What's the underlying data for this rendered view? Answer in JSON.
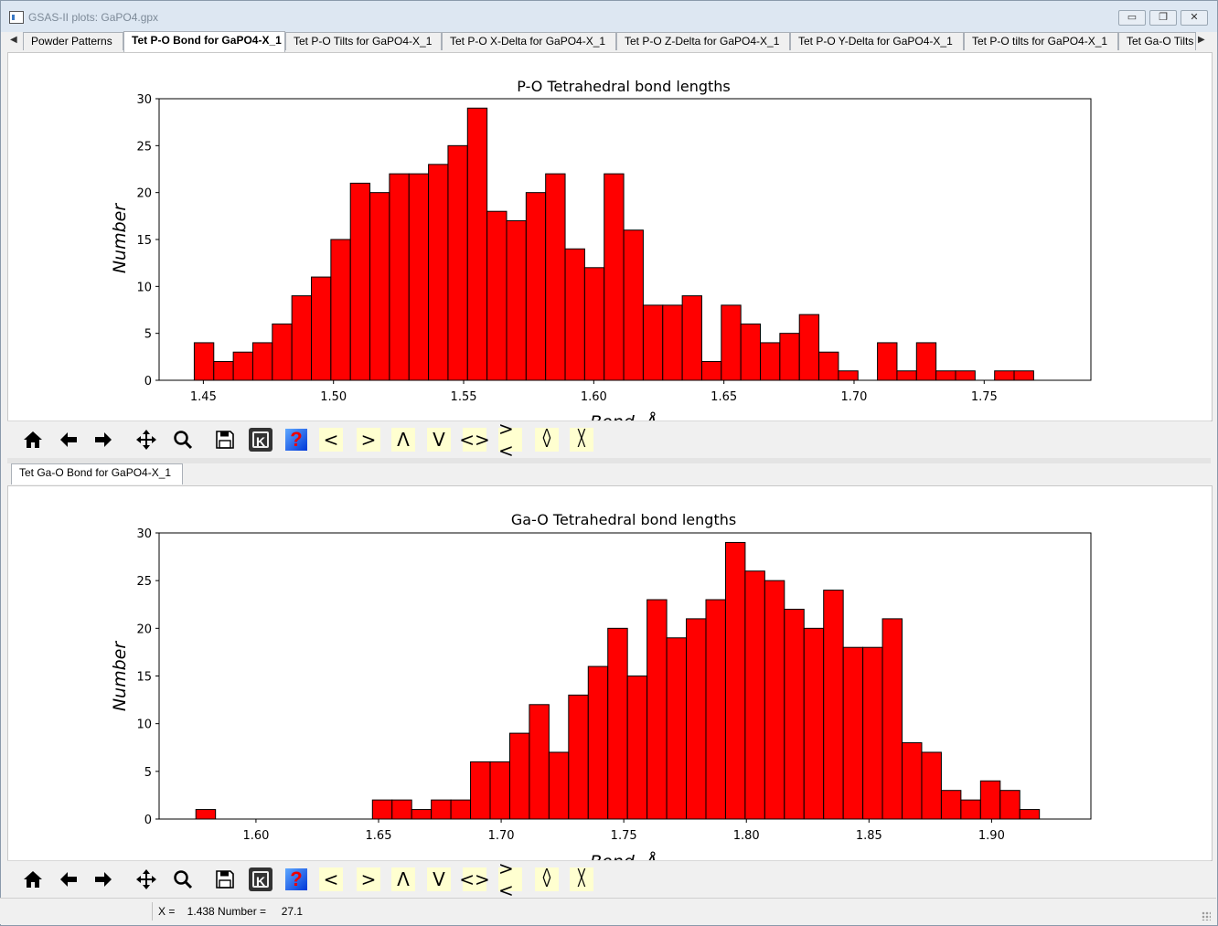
{
  "window": {
    "title": "GSAS-II plots: GaPO4.gpx",
    "minimize_glyph": "▭",
    "restore_glyph": "❐",
    "close_glyph": "✕"
  },
  "tabs": [
    {
      "label": "Powder Patterns",
      "active": false
    },
    {
      "label": "Tet P-O Bond for GaPO4-X_1",
      "active": true
    },
    {
      "label": "Tet P-O Tilts for GaPO4-X_1",
      "active": false
    },
    {
      "label": "Tet P-O X-Delta for GaPO4-X_1",
      "active": false
    },
    {
      "label": "Tet P-O Z-Delta for GaPO4-X_1",
      "active": false
    },
    {
      "label": "Tet P-O Y-Delta for GaPO4-X_1",
      "active": false
    },
    {
      "label": "Tet P-O tilts for GaPO4-X_1",
      "active": false
    },
    {
      "label": "Tet Ga-O Tilts",
      "active": false
    }
  ],
  "lower_tabs": [
    {
      "label": "Tet Ga-O Bond for GaPO4-X_1",
      "active": true
    }
  ],
  "toolbar_icons": [
    "home-icon",
    "back-arrow-icon",
    "forward-arrow-icon",
    "pan-icon",
    "zoom-icon",
    "save-icon",
    "k-key-icon",
    "help-icon",
    "shift-left-icon",
    "shift-right-icon",
    "shift-up-icon",
    "shift-down-icon",
    "expand-horizontal-icon",
    "shrink-horizontal-icon",
    "expand-vertical-icon",
    "shrink-vertical-icon"
  ],
  "toolbar_glyphs": {
    "lt": "<",
    "gt": ">",
    "up": "Λ",
    "down": "V",
    "exp_h": "<>",
    "shr_h": "><",
    "k": "K",
    "q": "?"
  },
  "status": {
    "text": "X =    1.438 Number =     27.1"
  },
  "colors": {
    "bar_fill": "#ff0000",
    "bar_edge": "#000000"
  },
  "chart_data": [
    {
      "type": "bar",
      "title": "P-O Tetrahedral bond lengths",
      "xlabel": "Bond, Å",
      "ylabel": "Number",
      "xlim": [
        1.433,
        1.791
      ],
      "ylim": [
        0,
        30
      ],
      "xticks": [
        "1.45",
        "1.50",
        "1.55",
        "1.60",
        "1.65",
        "1.70",
        "1.75"
      ],
      "yticks": [
        "0",
        "5",
        "10",
        "15",
        "20",
        "25",
        "30"
      ],
      "bin_start": 1.4465,
      "bin_width": 0.0075,
      "values": [
        4,
        2,
        3,
        4,
        6,
        9,
        11,
        15,
        21,
        20,
        22,
        22,
        23,
        25,
        29,
        18,
        17,
        20,
        22,
        14,
        12,
        22,
        16,
        8,
        8,
        9,
        2,
        8,
        6,
        4,
        5,
        7,
        3,
        1,
        0,
        4,
        1,
        4,
        1,
        1,
        0,
        1,
        1
      ]
    },
    {
      "type": "bar",
      "title": "Ga-O Tetrahedral bond lengths",
      "xlabel": "Bond, Å",
      "ylabel": "Number",
      "xlim": [
        1.5605,
        1.9405
      ],
      "ylim": [
        0,
        30
      ],
      "xticks": [
        "1.60",
        "1.65",
        "1.70",
        "1.75",
        "1.80",
        "1.85",
        "1.90"
      ],
      "yticks": [
        "0",
        "5",
        "10",
        "15",
        "20",
        "25",
        "30"
      ],
      "bin_start": 1.5755,
      "bin_width": 0.008,
      "values": [
        1,
        0,
        0,
        0,
        0,
        0,
        0,
        0,
        0,
        2,
        2,
        1,
        2,
        2,
        6,
        6,
        9,
        12,
        7,
        13,
        16,
        20,
        15,
        23,
        19,
        21,
        23,
        29,
        26,
        25,
        22,
        20,
        24,
        18,
        18,
        21,
        8,
        7,
        3,
        2,
        4,
        3,
        1
      ]
    }
  ]
}
